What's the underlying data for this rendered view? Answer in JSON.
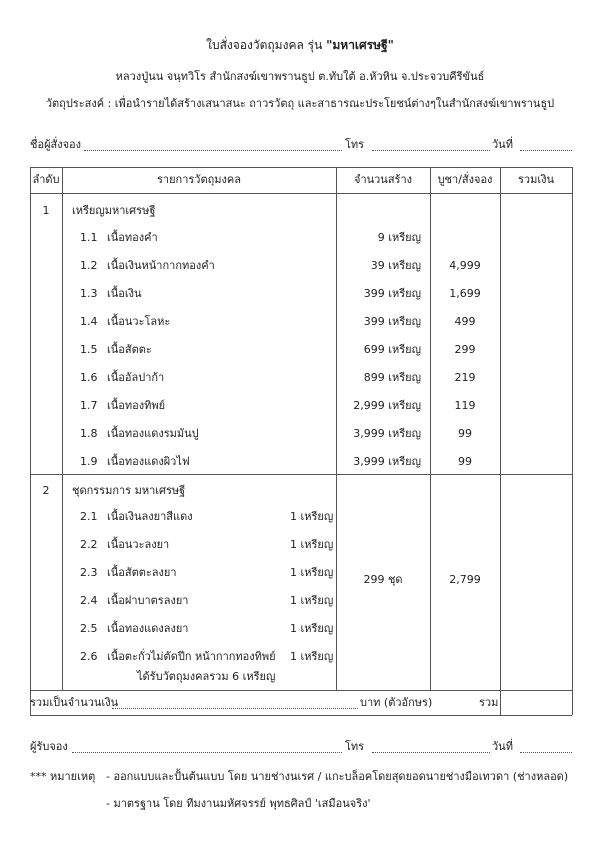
{
  "header": {
    "title": "ใบสั่งจองวัตถุมงคล รุ่น",
    "title_bold": "\"มหาเศรษฐี\"",
    "subtitle": "หลวงปู่นน จนฺทวิโร สำนักสงฆ์เขาพรานธูป ต.ทับใต้ อ.หัวหิน จ.ประจวบคีรีขันธ์",
    "purpose": "วัตถุประสงค์ : เพื่อนำรายได้สร้างเสนาสนะ ถาวรวัตถุ และสาธารณะประโยชน์ต่างๆในสำนักสงฆ์เขาพรานธูป"
  },
  "orderer": {
    "name_label": "ชื่อผู้สั่งจอง",
    "phone_label": "โทร",
    "date_label": "วันที่"
  },
  "table": {
    "columns": [
      "ลำดับ",
      "รายการวัตถุมงคล",
      "จำนวนสร้าง",
      "บูชา/สั่งจอง",
      "รวมเงิน"
    ],
    "groups": [
      {
        "no": "1",
        "title": "เหรียญมหาเศรษฐี",
        "items": [
          {
            "no": "1.1",
            "name": "เนื้อทองคำ",
            "count": "9 เหรียญ"
          },
          {
            "no": "1.2",
            "name": "เนื้อเงินหน้ากากทองคำ",
            "count": "39 เหรียญ",
            "price": "4,999"
          },
          {
            "no": "1.3",
            "name": "เนื้อเงิน",
            "count": "399 เหรียญ",
            "price": "1,699"
          },
          {
            "no": "1.4",
            "name": "เนื้อนวะโลหะ",
            "count": "399 เหรียญ",
            "price": "499"
          },
          {
            "no": "1.5",
            "name": "เนื้อสัตตะ",
            "count": "699 เหรียญ",
            "price": "299"
          },
          {
            "no": "1.6",
            "name": "เนื้ออัลปาก้า",
            "count": "899 เหรียญ",
            "price": "219"
          },
          {
            "no": "1.7",
            "name": "เนื้อทองทิพย์",
            "count": "2,999 เหรียญ",
            "price": "119"
          },
          {
            "no": "1.8",
            "name": "เนื้อทองแดงรมมันปู",
            "count": "3,999 เหรียญ",
            "price": "99"
          },
          {
            "no": "1.9",
            "name": "เนื้อทองแดงผิวไฟ",
            "count": "3,999 เหรียญ",
            "price": "99"
          }
        ]
      },
      {
        "no": "2",
        "title": "ชุดกรรมการ มหาเศรษฐี",
        "count": "299 ชุด",
        "price": "2,799",
        "note": "ได้รับวัตถุมงคลรวม 6 เหรียญ",
        "items": [
          {
            "no": "2.1",
            "name": "เนื้อเงินลงยาสีแดง",
            "qty": "1 เหรียญ"
          },
          {
            "no": "2.2",
            "name": "เนื้อนวะลงยา",
            "qty": "1 เหรียญ"
          },
          {
            "no": "2.3",
            "name": "เนื้อสัตตะลงยา",
            "qty": "1 เหรียญ"
          },
          {
            "no": "2.4",
            "name": "เนื้อฝาบาตรลงยา",
            "qty": "1 เหรียญ"
          },
          {
            "no": "2.5",
            "name": "เนื้อทองแดงลงยา",
            "qty": "1 เหรียญ"
          },
          {
            "no": "2.6",
            "name": "เนื้อตะกั่วไม่ตัดปีก หน้ากากทองทิพย์",
            "qty": "1 เหรียญ"
          }
        ]
      }
    ],
    "total_label": "รวมเป็นจำนวนเงิน",
    "total_words_label": "บาท (ตัวอักษร)",
    "total_sum_label": "รวม"
  },
  "receiver": {
    "name_label": "ผู้รับจอง",
    "phone_label": "โทร",
    "date_label": "วันที่"
  },
  "notes": {
    "label": "*** หมายเหตุ",
    "lines": [
      "- ออกแบบและปั้นต้นแบบ โดย นายช่างนเรศ / แกะบล็อคโดยสุดยอดนายช่างมือเทวดา (ช่างหลอด)",
      "- มาตรฐาน โดย ทีมงานมหัศจรรย์ พุทธศิลป์ 'เสมือนจริง'"
    ]
  }
}
